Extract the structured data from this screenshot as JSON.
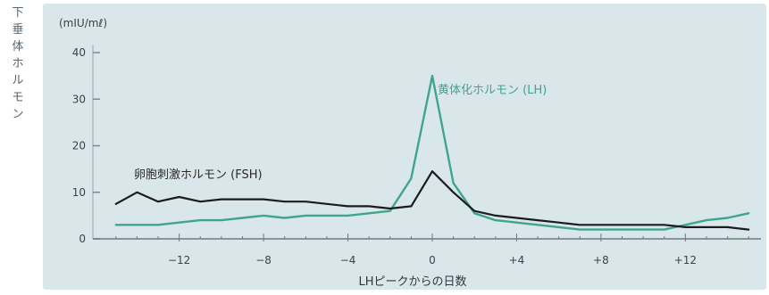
{
  "chart_data": {
    "type": "line",
    "ylabel": "下垂体ホルモン",
    "unit": "(mIU/mℓ)",
    "xlabel": "LHピークからの日数",
    "xlim": [
      -15.5,
      15.5
    ],
    "ylim": [
      0,
      45
    ],
    "xticks": [
      -12,
      -8,
      -4,
      0,
      4,
      8,
      12
    ],
    "xtick_labels": [
      "−12",
      "−8",
      "−4",
      "0",
      "+4",
      "+8",
      "+12"
    ],
    "yticks": [
      0,
      10,
      20,
      30,
      40
    ],
    "ytick_labels": [
      "0",
      "10",
      "20",
      "30",
      "40"
    ],
    "colors": {
      "plot_bg": "#d9e6ea",
      "lh": "#3fa58f",
      "fsh": "#1c1c1c",
      "lh_label": "#3fa58f",
      "fsh_label": "#2a2a2a"
    },
    "series": [
      {
        "key": "lh",
        "name": "黄体化ホルモン (LH)",
        "x": [
          -15,
          -14,
          -13,
          -12,
          -11,
          -10,
          -9,
          -8,
          -7,
          -6,
          -5,
          -4,
          -3,
          -2,
          -1,
          0,
          1,
          2,
          3,
          4,
          5,
          6,
          7,
          8,
          9,
          10,
          11,
          12,
          13,
          14,
          15
        ],
        "y": [
          3,
          3,
          3,
          3.5,
          4,
          4,
          4.5,
          5,
          4.5,
          5,
          5,
          5,
          5.5,
          6,
          13,
          35,
          12,
          5.5,
          4,
          3.5,
          3,
          2.5,
          2,
          2,
          2,
          2,
          2,
          3,
          4,
          4.5,
          5.5
        ]
      },
      {
        "key": "fsh",
        "name": "卵胞刺激ホルモン (FSH)",
        "x": [
          -15,
          -14,
          -13,
          -12,
          -11,
          -10,
          -9,
          -8,
          -7,
          -6,
          -5,
          -4,
          -3,
          -2,
          -1,
          0,
          1,
          2,
          3,
          4,
          5,
          6,
          7,
          8,
          9,
          10,
          11,
          12,
          13,
          14,
          15
        ],
        "y": [
          7.5,
          10,
          8,
          9,
          8,
          8.5,
          8.5,
          8.5,
          8,
          8,
          7.5,
          7,
          7,
          6.5,
          7,
          14.5,
          10,
          6,
          5,
          4.5,
          4,
          3.5,
          3,
          3,
          3,
          3,
          3,
          2.5,
          2.5,
          2.5,
          2
        ]
      }
    ]
  }
}
